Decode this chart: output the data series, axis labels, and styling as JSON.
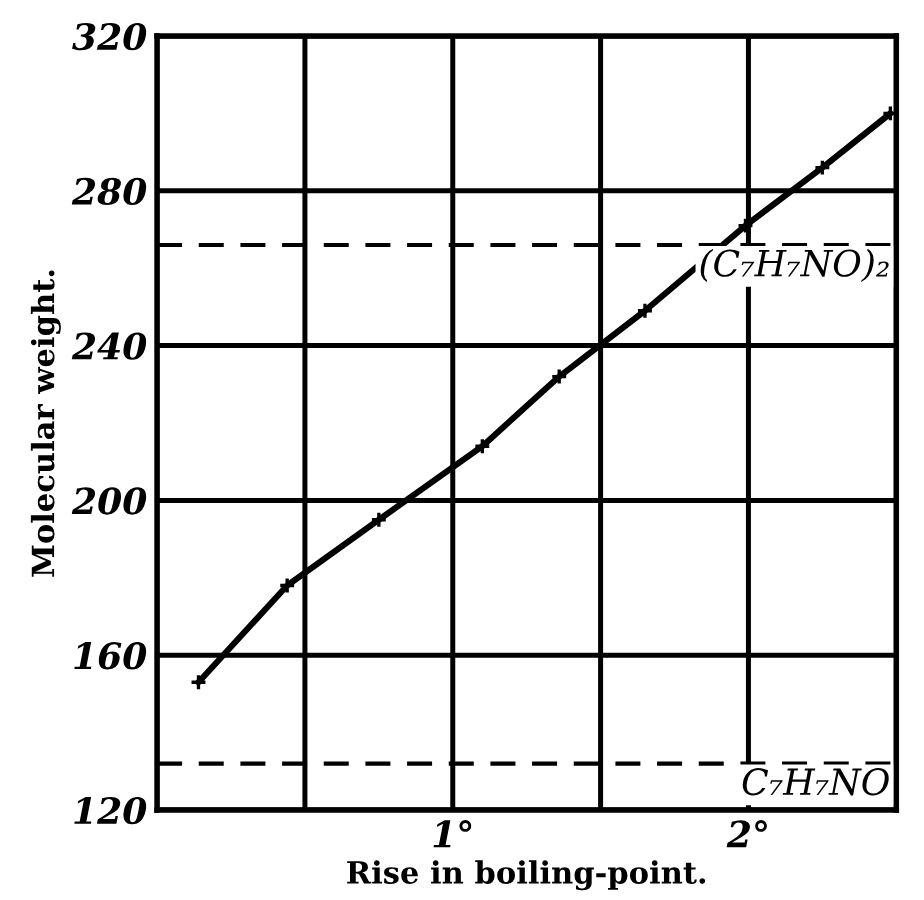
{
  "chart_data": {
    "type": "line",
    "xlabel": "Rise in boiling-point.",
    "ylabel": "Molecular weight.",
    "x": [
      0.14,
      0.44,
      0.75,
      1.1,
      1.36,
      1.65,
      1.99,
      2.25,
      2.48
    ],
    "series": [
      {
        "color": "#000000",
        "values": [
          153,
          178,
          195,
          214,
          232,
          249,
          271,
          286,
          300
        ]
      }
    ],
    "xlim": [
      0,
      2.5
    ],
    "ylim": [
      120,
      320
    ],
    "xticks": [
      {
        "value": 0.5,
        "label": null
      },
      {
        "value": 1,
        "label": "1°"
      },
      {
        "value": 1.5,
        "label": null
      },
      {
        "value": 2,
        "label": "2°"
      }
    ],
    "yticks": [
      120,
      160,
      200,
      240,
      280,
      320
    ],
    "grid": true,
    "marker": "cross",
    "line_style": "solid",
    "ref_lines": [
      {
        "axis": "y",
        "value": 266,
        "label": "(C₇H₇NO)₂",
        "line_style": "dashed",
        "color": "#000000"
      },
      {
        "axis": "y",
        "value": 132,
        "label": "C₇H₇NO",
        "line_style": "dashed",
        "color": "#000000"
      }
    ]
  }
}
